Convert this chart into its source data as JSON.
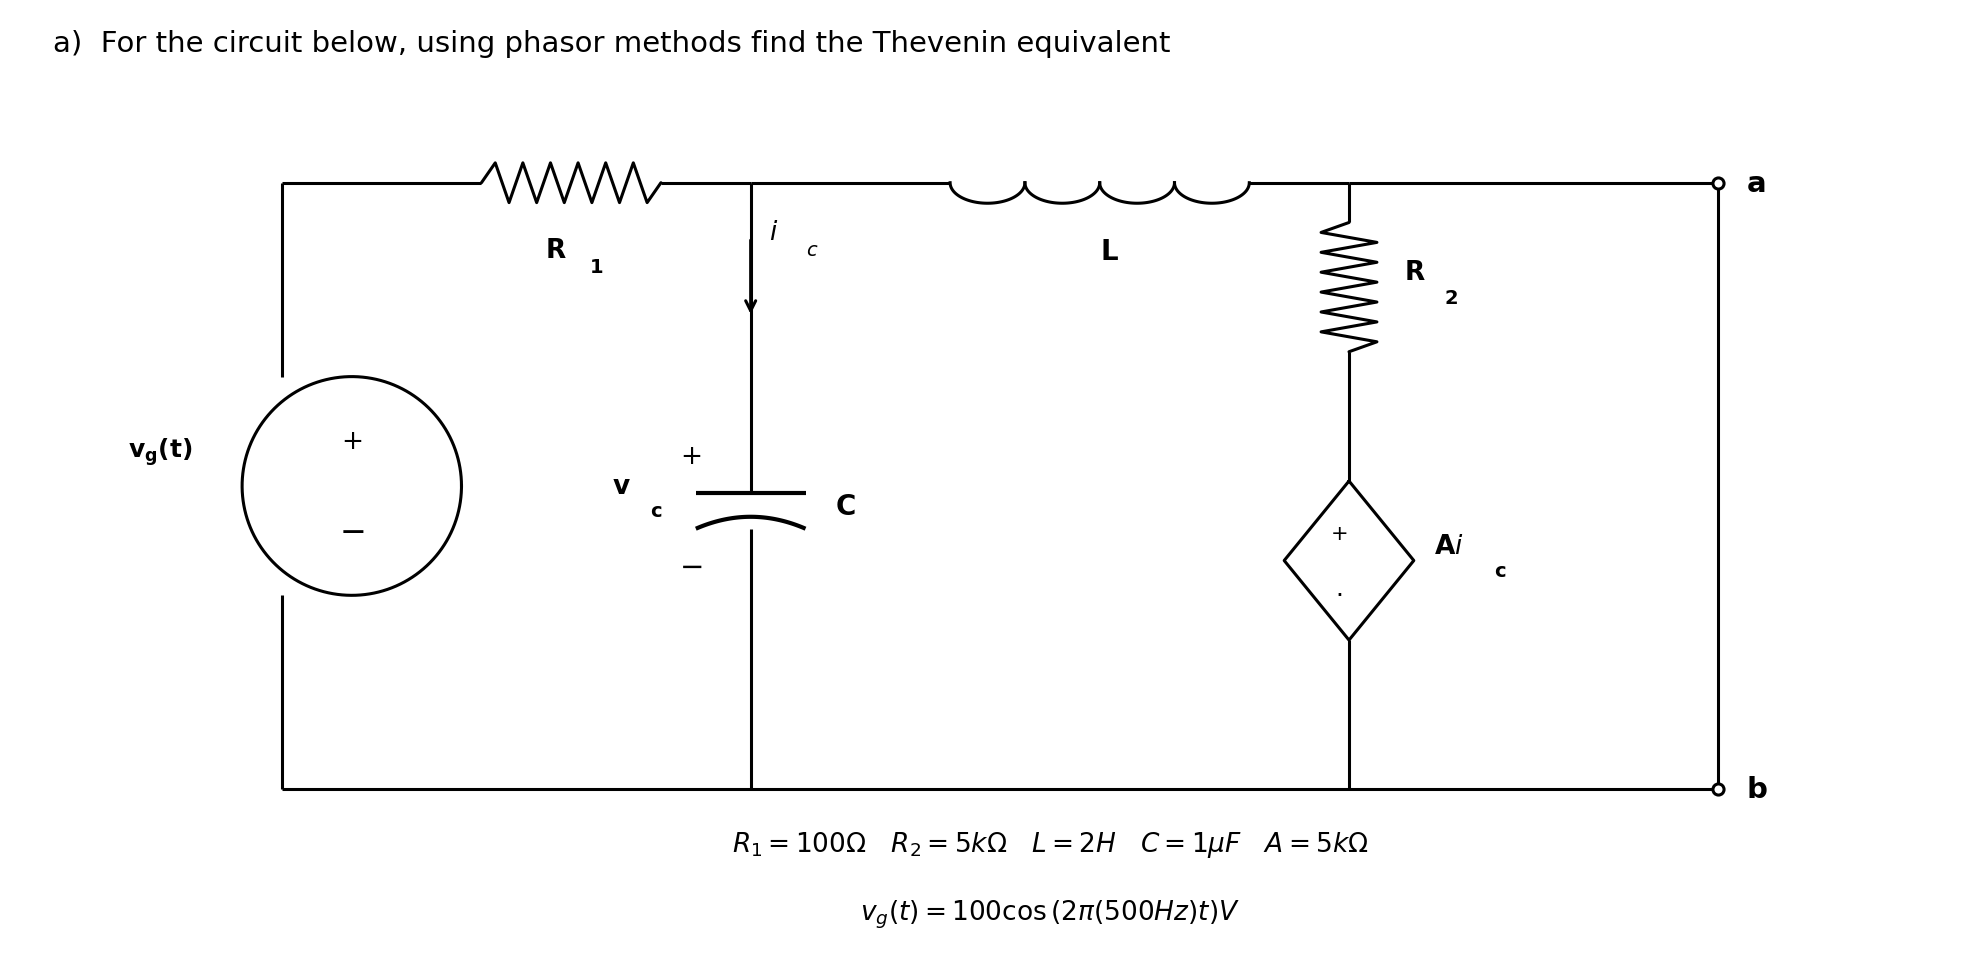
{
  "title": "a)  For the circuit below, using phasor methods find the Thevenin equivalent",
  "title_fontsize": 21,
  "eq_line1": "$R_1 = 100\\Omega$   $R_2 = 5k\\Omega$   $L = 2H$   $C = 1\\mu F$   $A = 5k\\Omega$",
  "eq_line2": "$v_g(t) = 100\\cos\\left(2\\pi\\left(500Hz\\right)t\\right)V$",
  "eq_fontsize": 19,
  "bg_color": "#ffffff",
  "line_color": "#000000",
  "fig_width": 19.87,
  "fig_height": 9.62
}
